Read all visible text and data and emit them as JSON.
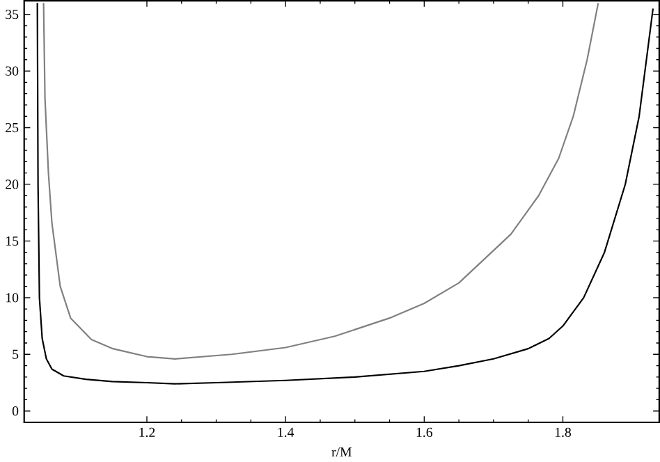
{
  "chart_data": {
    "type": "line",
    "xlabel": "r/M",
    "xlim": [
      1.023,
      1.939
    ],
    "ylim": [
      -1,
      36.2
    ],
    "xticks": [
      1.2,
      1.4,
      1.6,
      1.8
    ],
    "yticks": [
      0,
      5,
      10,
      15,
      20,
      25,
      30,
      35
    ],
    "marker": "none",
    "line_style": "solid",
    "grid": false,
    "series": [
      {
        "color": "#000000",
        "x": [
          1.042,
          1.043,
          1.045,
          1.049,
          1.055,
          1.063,
          1.08,
          1.112,
          1.15,
          1.2,
          1.24,
          1.3,
          1.4,
          1.5,
          1.6,
          1.65,
          1.7,
          1.75,
          1.78,
          1.8,
          1.83,
          1.86,
          1.89,
          1.91,
          1.93
        ],
        "values": [
          36,
          20,
          10,
          6.4,
          4.6,
          3.7,
          3.1,
          2.8,
          2.6,
          2.5,
          2.4,
          2.5,
          2.7,
          3.0,
          3.5,
          4.0,
          4.6,
          5.5,
          6.4,
          7.5,
          10,
          14,
          20,
          26,
          35.5
        ]
      },
      {
        "color": "#808080",
        "x": [
          1.051,
          1.053,
          1.058,
          1.063,
          1.075,
          1.09,
          1.12,
          1.151,
          1.2,
          1.241,
          1.322,
          1.4,
          1.471,
          1.55,
          1.6,
          1.65,
          1.725,
          1.765,
          1.794,
          1.815,
          1.835,
          1.851
        ],
        "values": [
          36,
          27.6,
          21,
          16.6,
          11,
          8.2,
          6.3,
          5.5,
          4.8,
          4.6,
          5.0,
          5.6,
          6.6,
          8.2,
          9.5,
          11.3,
          15.6,
          19,
          22.3,
          26,
          31,
          36
        ]
      }
    ]
  }
}
